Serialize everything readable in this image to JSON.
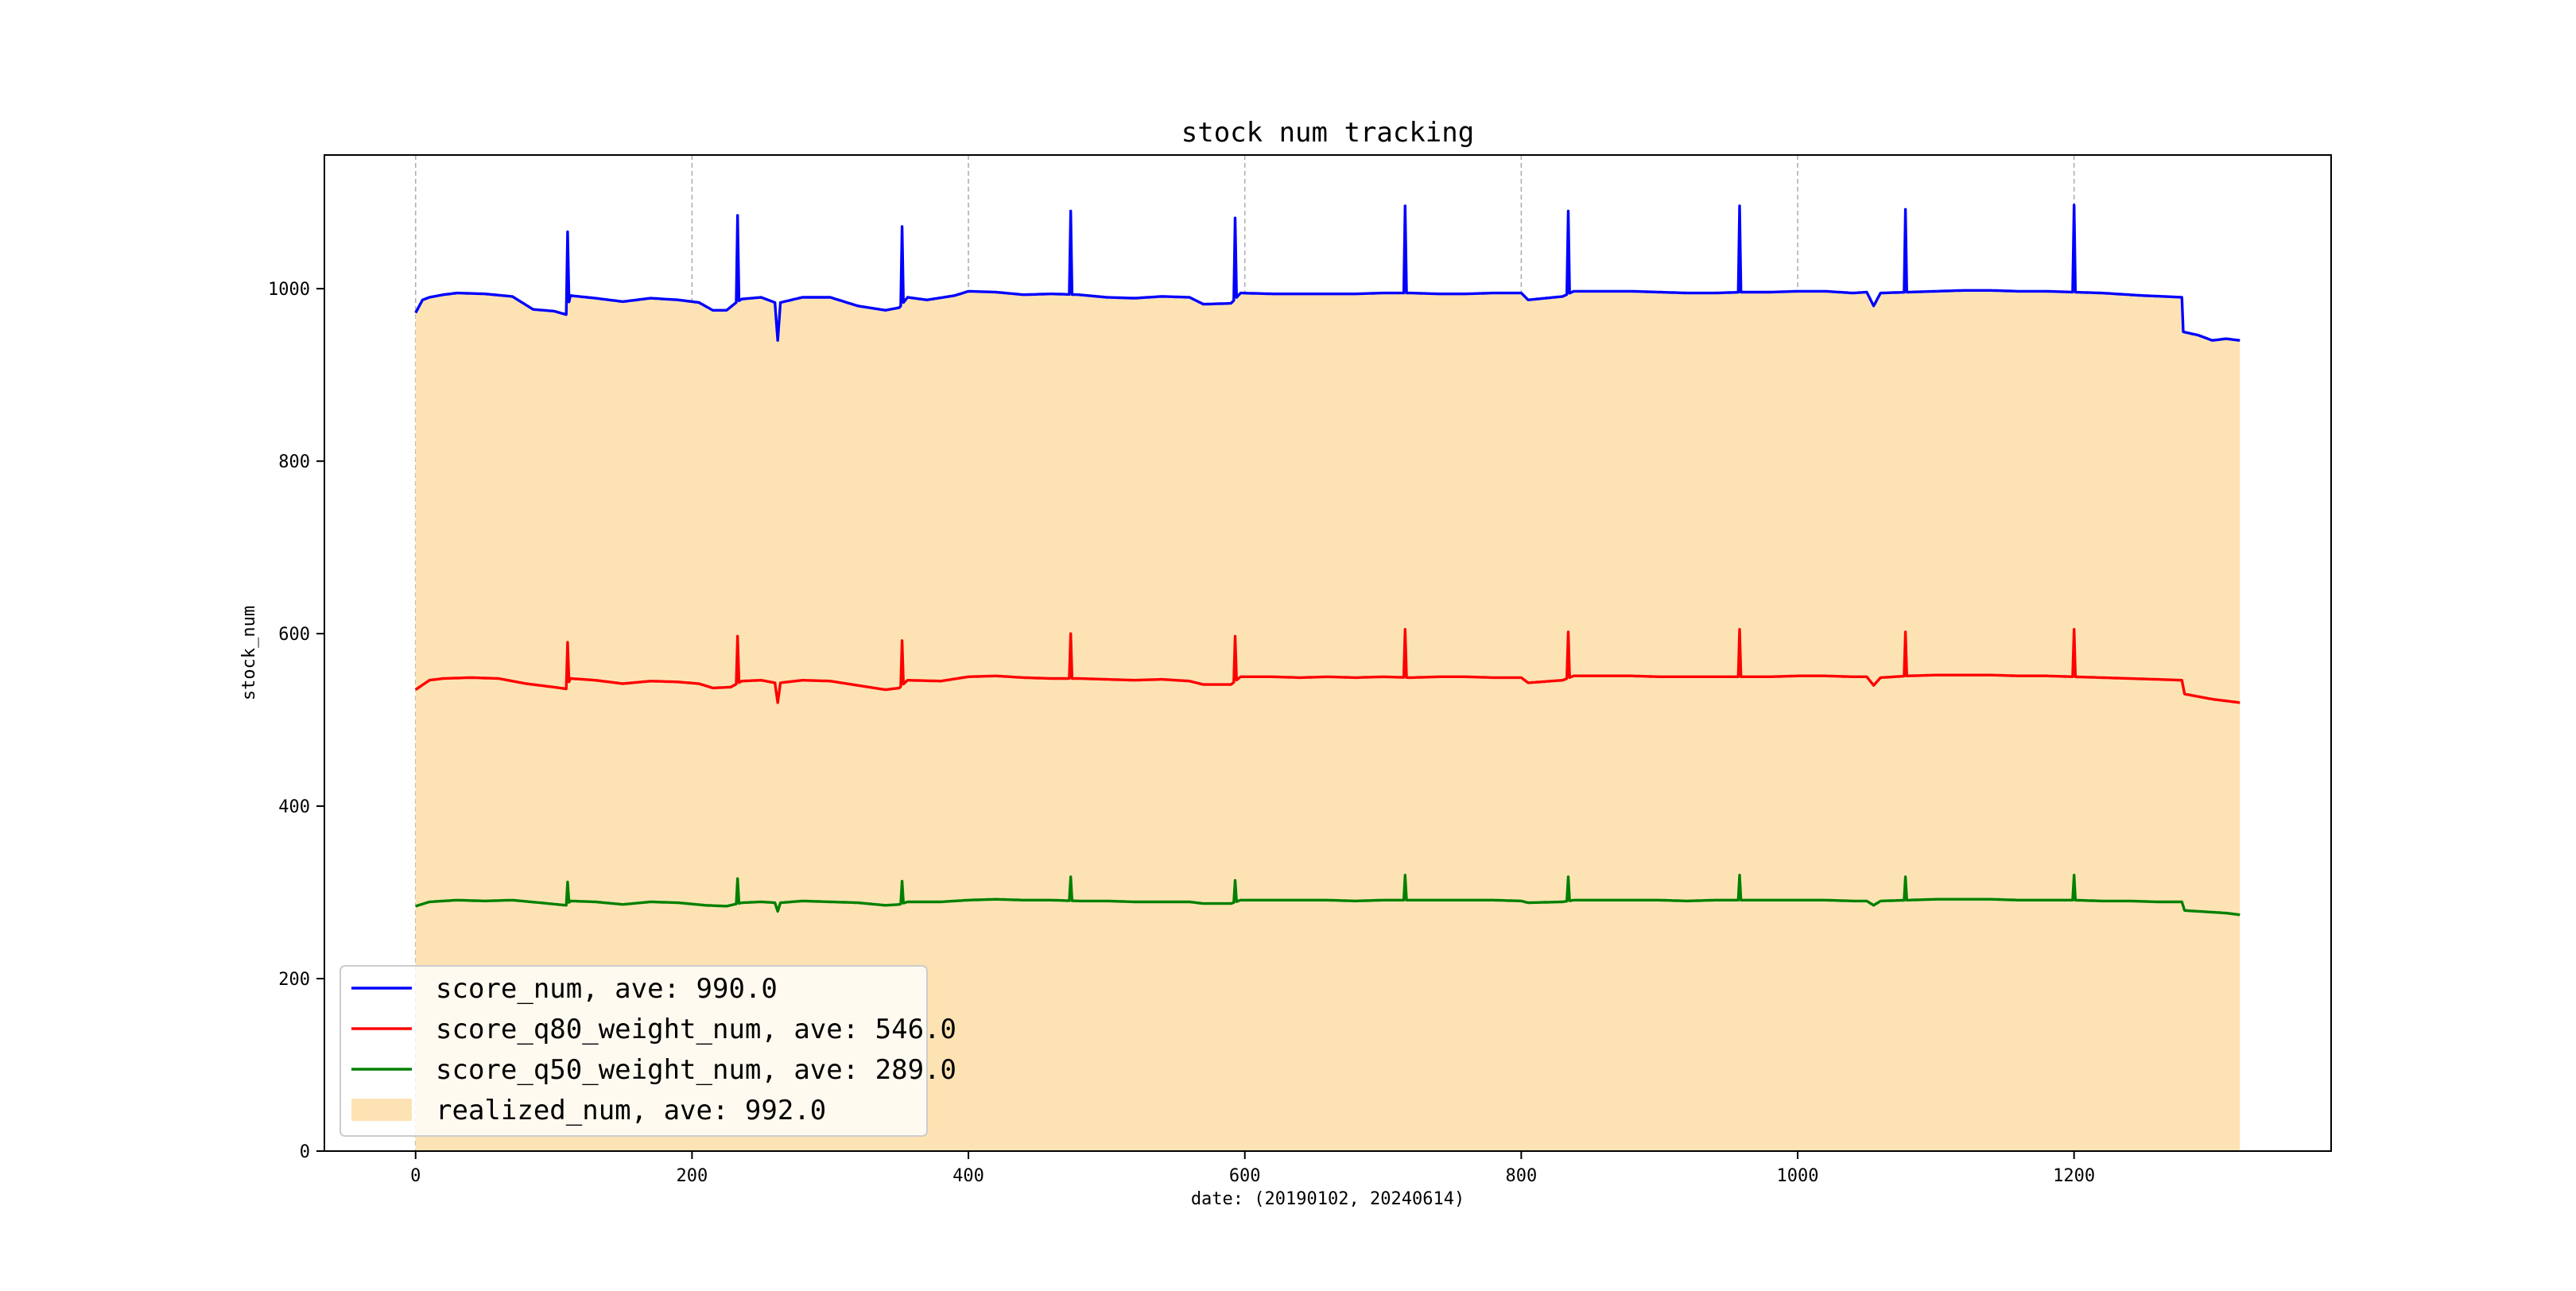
{
  "chart_data": {
    "type": "line",
    "title": "stock num tracking",
    "xlabel": "date: (20190102, 20240614)",
    "ylabel": "stock_num",
    "xlim": [
      -66,
      1386
    ],
    "ylim": [
      0,
      1155
    ],
    "xticks": [
      0,
      200,
      400,
      600,
      800,
      1000,
      1200
    ],
    "yticks": [
      0,
      200,
      400,
      600,
      800,
      1000
    ],
    "grid": "vertical dashed",
    "legend_position": "lower-left",
    "x_count": 1320,
    "spikes": [
      110,
      233,
      352,
      474,
      593,
      716,
      834,
      958,
      1078,
      1200
    ],
    "series": [
      {
        "name": "score_num, ave: 990.0",
        "kind": "line",
        "color": "#0000ff",
        "points": [
          [
            0,
            972
          ],
          [
            5,
            987
          ],
          [
            10,
            990
          ],
          [
            20,
            993
          ],
          [
            30,
            995
          ],
          [
            50,
            994
          ],
          [
            70,
            991
          ],
          [
            85,
            976
          ],
          [
            100,
            974
          ],
          [
            109,
            970
          ],
          [
            112,
            992
          ],
          [
            130,
            989
          ],
          [
            150,
            985
          ],
          [
            170,
            989
          ],
          [
            190,
            987
          ],
          [
            205,
            984
          ],
          [
            215,
            975
          ],
          [
            225,
            975
          ],
          [
            232,
            984
          ],
          [
            236,
            988
          ],
          [
            250,
            990
          ],
          [
            260,
            984
          ],
          [
            262,
            940
          ],
          [
            264,
            984
          ],
          [
            280,
            990
          ],
          [
            300,
            990
          ],
          [
            320,
            980
          ],
          [
            340,
            975
          ],
          [
            350,
            978
          ],
          [
            356,
            990
          ],
          [
            370,
            987
          ],
          [
            390,
            992
          ],
          [
            400,
            997
          ],
          [
            420,
            996
          ],
          [
            440,
            993
          ],
          [
            460,
            994
          ],
          [
            480,
            993
          ],
          [
            500,
            990
          ],
          [
            520,
            989
          ],
          [
            540,
            991
          ],
          [
            560,
            990
          ],
          [
            570,
            982
          ],
          [
            590,
            983
          ],
          [
            597,
            995
          ],
          [
            620,
            994
          ],
          [
            640,
            994
          ],
          [
            660,
            994
          ],
          [
            680,
            994
          ],
          [
            700,
            995
          ],
          [
            720,
            995
          ],
          [
            740,
            994
          ],
          [
            760,
            994
          ],
          [
            780,
            995
          ],
          [
            800,
            995
          ],
          [
            805,
            987
          ],
          [
            830,
            991
          ],
          [
            838,
            997
          ],
          [
            860,
            997
          ],
          [
            880,
            997
          ],
          [
            900,
            996
          ],
          [
            920,
            995
          ],
          [
            940,
            995
          ],
          [
            960,
            996
          ],
          [
            980,
            996
          ],
          [
            1000,
            997
          ],
          [
            1020,
            997
          ],
          [
            1040,
            995
          ],
          [
            1050,
            996
          ],
          [
            1055,
            980
          ],
          [
            1060,
            995
          ],
          [
            1080,
            996
          ],
          [
            1100,
            997
          ],
          [
            1120,
            998
          ],
          [
            1140,
            998
          ],
          [
            1160,
            997
          ],
          [
            1180,
            997
          ],
          [
            1200,
            996
          ],
          [
            1220,
            995
          ],
          [
            1240,
            993
          ],
          [
            1250,
            992
          ],
          [
            1265,
            991
          ],
          [
            1278,
            990
          ],
          [
            1279,
            950
          ],
          [
            1290,
            946
          ],
          [
            1300,
            940
          ],
          [
            1310,
            942
          ],
          [
            1320,
            940
          ]
        ],
        "spike_peaks": [
          1066,
          1085,
          1072,
          1090,
          1082,
          1096,
          1090,
          1096,
          1092,
          1097
        ]
      },
      {
        "name": "score_q80_weight_num, ave: 546.0",
        "kind": "line",
        "color": "#ff0000",
        "points": [
          [
            0,
            535
          ],
          [
            10,
            546
          ],
          [
            20,
            548
          ],
          [
            40,
            549
          ],
          [
            60,
            548
          ],
          [
            80,
            542
          ],
          [
            100,
            538
          ],
          [
            109,
            536
          ],
          [
            112,
            548
          ],
          [
            130,
            546
          ],
          [
            150,
            542
          ],
          [
            170,
            545
          ],
          [
            190,
            544
          ],
          [
            205,
            542
          ],
          [
            215,
            537
          ],
          [
            228,
            538
          ],
          [
            236,
            545
          ],
          [
            250,
            546
          ],
          [
            260,
            543
          ],
          [
            262,
            520
          ],
          [
            264,
            543
          ],
          [
            280,
            546
          ],
          [
            300,
            545
          ],
          [
            320,
            540
          ],
          [
            340,
            535
          ],
          [
            350,
            537
          ],
          [
            356,
            546
          ],
          [
            380,
            545
          ],
          [
            400,
            550
          ],
          [
            420,
            551
          ],
          [
            440,
            549
          ],
          [
            460,
            548
          ],
          [
            480,
            548
          ],
          [
            500,
            547
          ],
          [
            520,
            546
          ],
          [
            540,
            547
          ],
          [
            560,
            545
          ],
          [
            570,
            541
          ],
          [
            590,
            541
          ],
          [
            597,
            550
          ],
          [
            620,
            550
          ],
          [
            640,
            549
          ],
          [
            660,
            550
          ],
          [
            680,
            549
          ],
          [
            700,
            550
          ],
          [
            720,
            549
          ],
          [
            740,
            550
          ],
          [
            760,
            550
          ],
          [
            780,
            549
          ],
          [
            800,
            549
          ],
          [
            805,
            543
          ],
          [
            830,
            546
          ],
          [
            838,
            551
          ],
          [
            860,
            551
          ],
          [
            880,
            551
          ],
          [
            900,
            550
          ],
          [
            920,
            550
          ],
          [
            940,
            550
          ],
          [
            960,
            550
          ],
          [
            980,
            550
          ],
          [
            1000,
            551
          ],
          [
            1020,
            551
          ],
          [
            1040,
            550
          ],
          [
            1050,
            550
          ],
          [
            1055,
            540
          ],
          [
            1060,
            549
          ],
          [
            1080,
            551
          ],
          [
            1100,
            552
          ],
          [
            1120,
            552
          ],
          [
            1140,
            552
          ],
          [
            1160,
            551
          ],
          [
            1180,
            551
          ],
          [
            1200,
            550
          ],
          [
            1220,
            549
          ],
          [
            1240,
            548
          ],
          [
            1260,
            547
          ],
          [
            1278,
            546
          ],
          [
            1280,
            530
          ],
          [
            1290,
            527
          ],
          [
            1300,
            524
          ],
          [
            1310,
            522
          ],
          [
            1320,
            520
          ]
        ],
        "spike_peaks": [
          590,
          597,
          592,
          600,
          597,
          605,
          602,
          605,
          602,
          605
        ]
      },
      {
        "name": "score_q50_weight_num, ave: 289.0",
        "kind": "line",
        "color": "#008000",
        "points": [
          [
            0,
            284
          ],
          [
            10,
            289
          ],
          [
            30,
            291
          ],
          [
            50,
            290
          ],
          [
            70,
            291
          ],
          [
            90,
            288
          ],
          [
            109,
            285
          ],
          [
            112,
            290
          ],
          [
            130,
            289
          ],
          [
            150,
            286
          ],
          [
            170,
            289
          ],
          [
            190,
            288
          ],
          [
            210,
            285
          ],
          [
            225,
            284
          ],
          [
            236,
            288
          ],
          [
            250,
            289
          ],
          [
            260,
            288
          ],
          [
            262,
            278
          ],
          [
            264,
            288
          ],
          [
            280,
            290
          ],
          [
            300,
            289
          ],
          [
            320,
            288
          ],
          [
            340,
            285
          ],
          [
            350,
            286
          ],
          [
            356,
            289
          ],
          [
            380,
            289
          ],
          [
            400,
            291
          ],
          [
            420,
            292
          ],
          [
            440,
            291
          ],
          [
            460,
            291
          ],
          [
            480,
            290
          ],
          [
            500,
            290
          ],
          [
            520,
            289
          ],
          [
            540,
            289
          ],
          [
            560,
            289
          ],
          [
            570,
            287
          ],
          [
            590,
            287
          ],
          [
            597,
            291
          ],
          [
            620,
            291
          ],
          [
            640,
            291
          ],
          [
            660,
            291
          ],
          [
            680,
            290
          ],
          [
            700,
            291
          ],
          [
            720,
            291
          ],
          [
            740,
            291
          ],
          [
            760,
            291
          ],
          [
            780,
            291
          ],
          [
            800,
            290
          ],
          [
            805,
            288
          ],
          [
            830,
            289
          ],
          [
            838,
            291
          ],
          [
            860,
            291
          ],
          [
            880,
            291
          ],
          [
            900,
            291
          ],
          [
            920,
            290
          ],
          [
            940,
            291
          ],
          [
            960,
            291
          ],
          [
            980,
            291
          ],
          [
            1000,
            291
          ],
          [
            1020,
            291
          ],
          [
            1040,
            290
          ],
          [
            1050,
            290
          ],
          [
            1055,
            285
          ],
          [
            1060,
            290
          ],
          [
            1080,
            291
          ],
          [
            1100,
            292
          ],
          [
            1120,
            292
          ],
          [
            1140,
            292
          ],
          [
            1160,
            291
          ],
          [
            1180,
            291
          ],
          [
            1200,
            291
          ],
          [
            1220,
            290
          ],
          [
            1240,
            290
          ],
          [
            1260,
            289
          ],
          [
            1278,
            289
          ],
          [
            1280,
            279
          ],
          [
            1290,
            278
          ],
          [
            1300,
            277
          ],
          [
            1310,
            276
          ],
          [
            1320,
            274
          ]
        ],
        "spike_peaks": [
          312,
          316,
          313,
          318,
          314,
          320,
          318,
          320,
          318,
          320
        ]
      },
      {
        "name": "realized_num, ave: 992.0",
        "kind": "area",
        "color": "#fde3b4",
        "note_follows": "score_num"
      }
    ]
  }
}
